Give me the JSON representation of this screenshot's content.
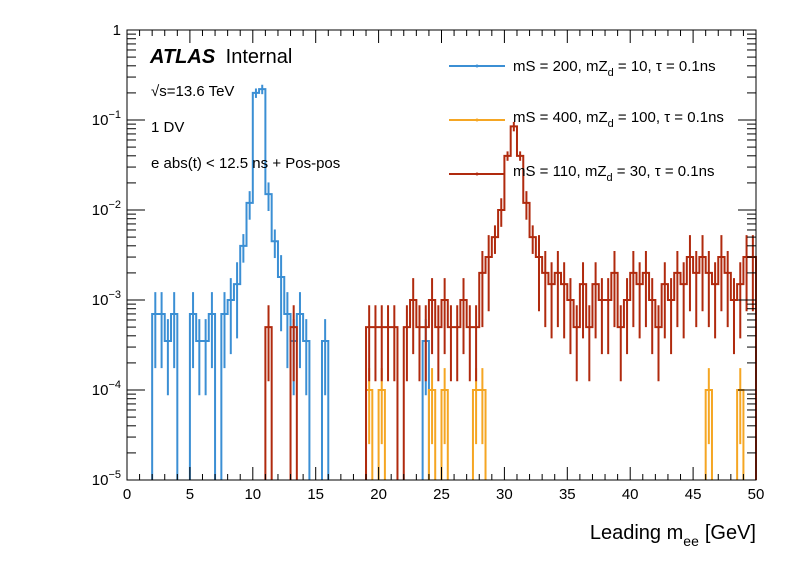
{
  "header": {
    "brand": "ATLAS",
    "status": "Internal",
    "energy_sym": "√",
    "energy_rest": "s=13.6 TeV",
    "selection_1": "1 DV",
    "selection_2": "e abs(t) < 12.5 ns + Pos-pos"
  },
  "chart_data": {
    "type": "line",
    "style": "step-histogram",
    "title": "",
    "xlabel_main": "Leading m",
    "xlabel_sub": "ee",
    "xlabel_unit": "[GeV]",
    "ylabel": "",
    "xlim": [
      0,
      50
    ],
    "ylim": [
      1e-05,
      1
    ],
    "yscale": "log",
    "bin_width": 0.5,
    "x_ticks": [
      "0",
      "5",
      "10",
      "15",
      "20",
      "25",
      "30",
      "35",
      "40",
      "45",
      "50"
    ],
    "y_ticks": [
      {
        "base": "10",
        "exp": "−5"
      },
      {
        "base": "10",
        "exp": "−4"
      },
      {
        "base": "10",
        "exp": "−3"
      },
      {
        "base": "10",
        "exp": "−2"
      },
      {
        "base": "10",
        "exp": "−1"
      },
      {
        "base": "1",
        "exp": ""
      }
    ],
    "legend_position": "top-right",
    "series": [
      {
        "name": "mS = 200, mZ_d = 10, τ = 0.1ns",
        "label_pre": "mS = 200, mZ",
        "label_sub": "d",
        "label_post": " = 10, τ = 0.1ns",
        "color": "#3b8fd4",
        "bins": [
          [
            2,
            0.0007
          ],
          [
            2.5,
            0.0007
          ],
          [
            3,
            0.00035
          ],
          [
            3.5,
            0.0007
          ],
          [
            5,
            0.0007
          ],
          [
            5.5,
            0.00035
          ],
          [
            6,
            0.00035
          ],
          [
            6.5,
            0.0007
          ],
          [
            7.5,
            0.0007
          ],
          [
            8,
            0.001
          ],
          [
            8.5,
            0.0015
          ],
          [
            9,
            0.004
          ],
          [
            9.5,
            0.012
          ],
          [
            10,
            0.2
          ],
          [
            10.5,
            0.22
          ],
          [
            11,
            0.015
          ],
          [
            11.5,
            0.0045
          ],
          [
            12,
            0.0018
          ],
          [
            12.5,
            0.0007
          ],
          [
            13,
            0.00035
          ],
          [
            13.5,
            0.0007
          ],
          [
            14,
            0.00035
          ],
          [
            15.5,
            0.00035
          ],
          [
            23.5,
            0.00035
          ]
        ]
      },
      {
        "name": "mS = 400, mZ_d = 100, τ = 0.1ns",
        "label_pre": "mS = 400, mZ",
        "label_sub": "d",
        "label_post": " = 100, τ = 0.1ns",
        "color": "#f5a623",
        "bins": [
          [
            19,
            0.0001
          ],
          [
            20,
            0.0001
          ],
          [
            24,
            0.0001
          ],
          [
            25,
            0.0001
          ],
          [
            27.5,
            0.0001
          ],
          [
            28,
            0.0001
          ],
          [
            46,
            0.0001
          ],
          [
            48.5,
            0.0001
          ]
        ]
      },
      {
        "name": "mS = 110, mZ_d = 30, τ = 0.1ns",
        "label_pre": "mS = 110, mZ",
        "label_sub": "d",
        "label_post": " = 30, τ = 0.1ns",
        "color": "#b02a0e",
        "bins": [
          [
            11,
            0.0005
          ],
          [
            13,
            0.0005
          ],
          [
            19,
            0.0005
          ],
          [
            19.5,
            0.0005
          ],
          [
            20,
            0.0005
          ],
          [
            20.5,
            0.0005
          ],
          [
            21,
            0.0005
          ],
          [
            22,
            0.0005
          ],
          [
            22.5,
            0.001
          ],
          [
            23,
            0.0005
          ],
          [
            23.5,
            0.0005
          ],
          [
            24,
            0.001
          ],
          [
            24.5,
            0.0005
          ],
          [
            25,
            0.001
          ],
          [
            25.5,
            0.0005
          ],
          [
            26,
            0.0005
          ],
          [
            26.5,
            0.001
          ],
          [
            27,
            0.0005
          ],
          [
            27.5,
            0.0005
          ],
          [
            28,
            0.002
          ],
          [
            28.5,
            0.003
          ],
          [
            29,
            0.005
          ],
          [
            29.5,
            0.01
          ],
          [
            30,
            0.04
          ],
          [
            30.5,
            0.085
          ],
          [
            31,
            0.04
          ],
          [
            31.5,
            0.012
          ],
          [
            32,
            0.005
          ],
          [
            32.5,
            0.003
          ],
          [
            33,
            0.002
          ],
          [
            33.5,
            0.0015
          ],
          [
            34,
            0.002
          ],
          [
            34.5,
            0.0015
          ],
          [
            35,
            0.001
          ],
          [
            35.5,
            0.0005
          ],
          [
            36,
            0.0015
          ],
          [
            36.5,
            0.0005
          ],
          [
            37,
            0.0015
          ],
          [
            37.5,
            0.001
          ],
          [
            38,
            0.001
          ],
          [
            38.5,
            0.002
          ],
          [
            39,
            0.0005
          ],
          [
            39.5,
            0.001
          ],
          [
            40,
            0.002
          ],
          [
            40.5,
            0.0015
          ],
          [
            41,
            0.002
          ],
          [
            41.5,
            0.001
          ],
          [
            42,
            0.0005
          ],
          [
            42.5,
            0.0015
          ],
          [
            43,
            0.001
          ],
          [
            43.5,
            0.002
          ],
          [
            44,
            0.0015
          ],
          [
            44.5,
            0.003
          ],
          [
            45,
            0.002
          ],
          [
            45.5,
            0.003
          ],
          [
            46,
            0.002
          ],
          [
            46.5,
            0.0015
          ],
          [
            47,
            0.003
          ],
          [
            47.5,
            0.002
          ],
          [
            48,
            0.001
          ],
          [
            48.5,
            0.0015
          ],
          [
            49,
            0.003
          ],
          [
            49.5,
            0.003
          ]
        ]
      }
    ]
  }
}
